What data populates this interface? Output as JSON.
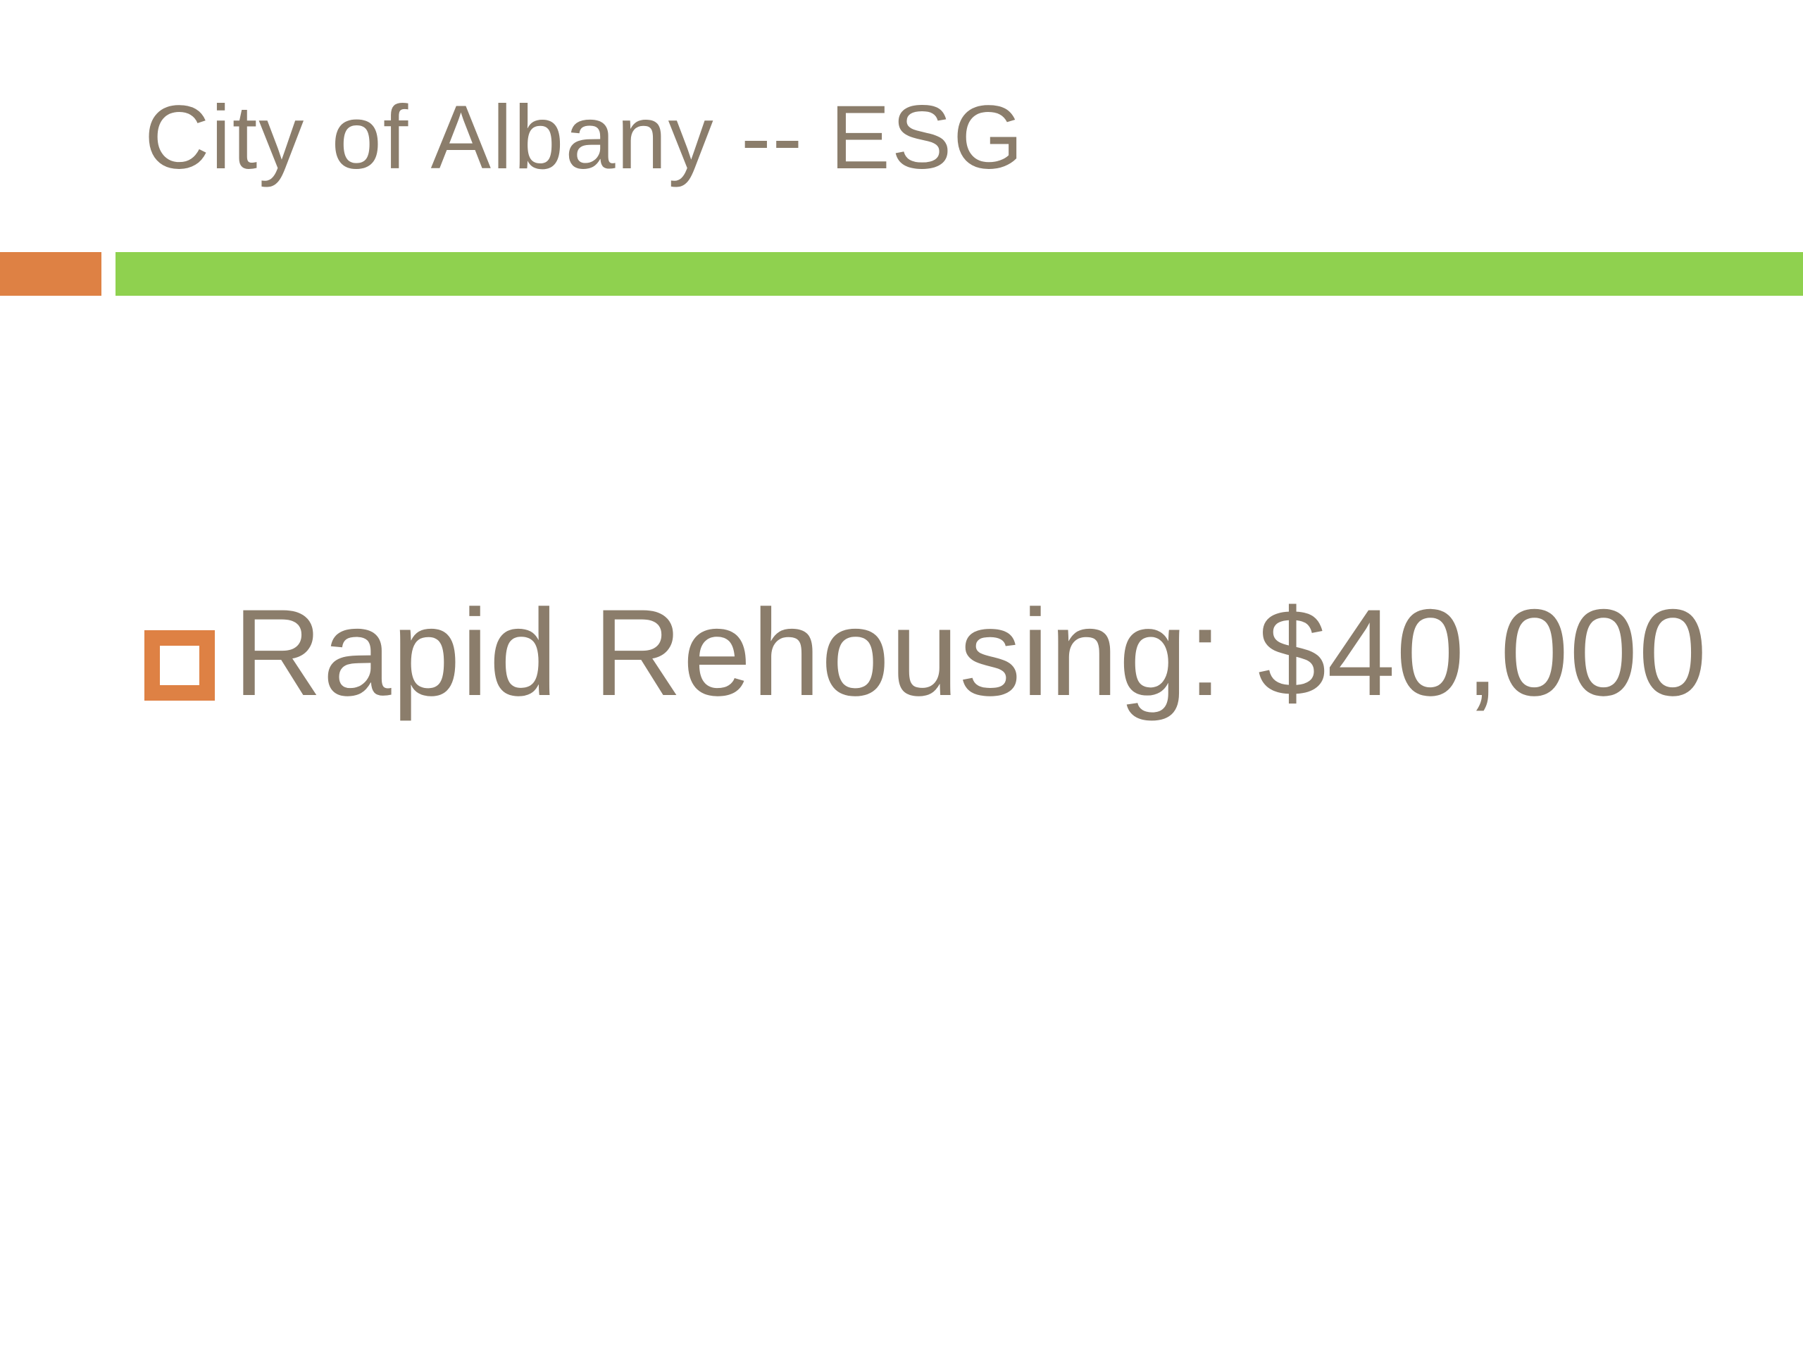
{
  "slide": {
    "title": "City of Albany -- ESG",
    "body": {
      "bullet_item": "Rapid Rehousing: $40,000",
      "bullet_icon": "hollow-orange-square"
    },
    "colors": {
      "title_text": "#8B7D6B",
      "body_text": "#8B7D6B",
      "accent_orange": "#DE8144",
      "accent_green": "#8FD14F",
      "background": "#FFFFFF"
    }
  }
}
